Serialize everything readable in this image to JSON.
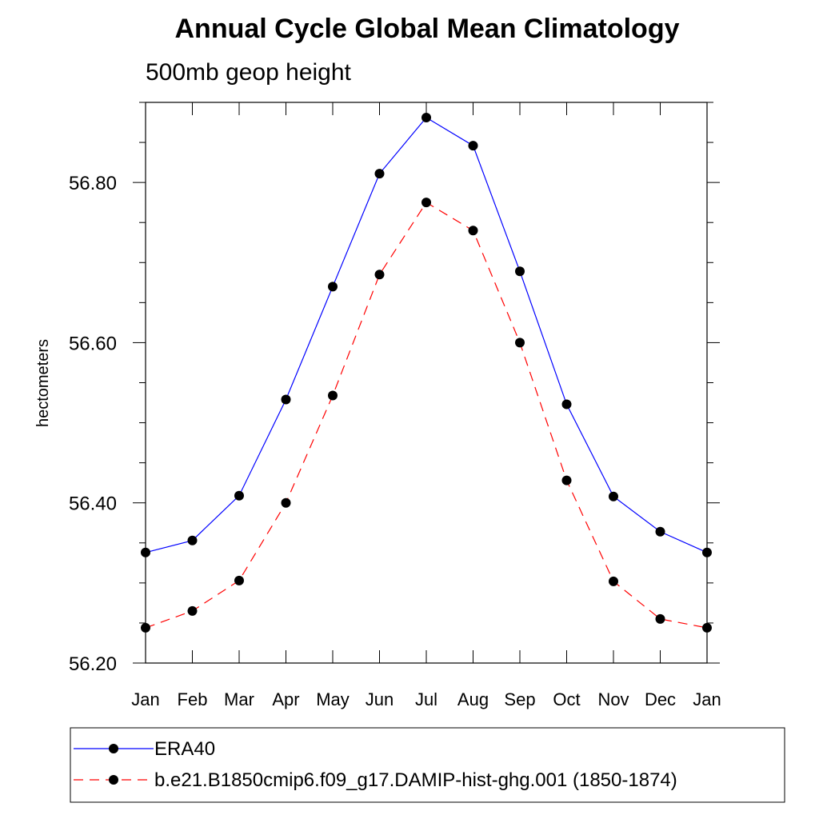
{
  "chart_data": {
    "type": "line",
    "title": "Annual Cycle Global Mean Climatology",
    "subtitle": "500mb geop height",
    "xlabel": "",
    "ylabel": "hectometers",
    "categories": [
      "Jan",
      "Feb",
      "Mar",
      "Apr",
      "May",
      "Jun",
      "Jul",
      "Aug",
      "Sep",
      "Oct",
      "Nov",
      "Dec",
      "Jan"
    ],
    "ylim": [
      56.2,
      56.9
    ],
    "yticks": [
      56.2,
      56.4,
      56.6,
      56.8
    ],
    "ytick_labels": [
      "56.20",
      "56.40",
      "56.60",
      "56.80"
    ],
    "series": [
      {
        "name": "ERA40",
        "color": "#0000ff",
        "line_style": "solid",
        "marker": "filled-circle",
        "values": [
          56.338,
          56.353,
          56.409,
          56.529,
          56.67,
          56.811,
          56.881,
          56.846,
          56.689,
          56.523,
          56.408,
          56.364,
          56.338
        ]
      },
      {
        "name": "b.e21.B1850cmip6.f09_g17.DAMIP-hist-ghg.001 (1850-1874)",
        "color": "#ff0000",
        "line_style": "dashed",
        "marker": "filled-circle",
        "values": [
          56.244,
          56.265,
          56.303,
          56.4,
          56.534,
          56.685,
          56.775,
          56.74,
          56.6,
          56.428,
          56.302,
          56.255,
          56.244
        ]
      }
    ],
    "legend_position": "bottom",
    "grid": false
  }
}
